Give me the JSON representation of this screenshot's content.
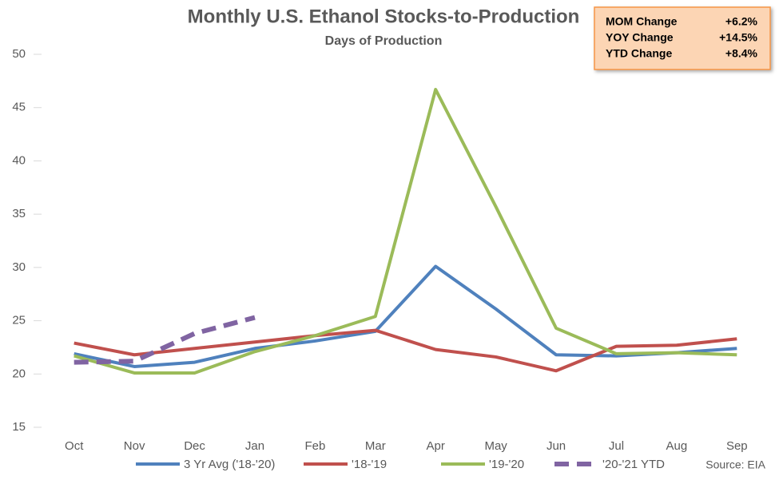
{
  "chart_data": {
    "type": "line",
    "title": "Monthly U.S. Ethanol Stocks-to-Production",
    "subtitle": "Days of Production",
    "categories": [
      "Oct",
      "Nov",
      "Dec",
      "Jan",
      "Feb",
      "Mar",
      "Apr",
      "May",
      "Jun",
      "Jul",
      "Aug",
      "Sep"
    ],
    "series": [
      {
        "name": "3 Yr Avg ('18-'20)",
        "color": "#4f81bd",
        "dash": false,
        "values": [
          21.9,
          20.7,
          21.1,
          22.4,
          23.1,
          24.0,
          30.1,
          26.1,
          21.8,
          21.7,
          22.0,
          22.4
        ]
      },
      {
        "name": "'18-'19",
        "color": "#c0504d",
        "dash": false,
        "values": [
          22.9,
          21.8,
          22.4,
          23.0,
          23.6,
          24.1,
          22.3,
          21.6,
          20.3,
          22.6,
          22.7,
          23.3
        ]
      },
      {
        "name": "'19-'20",
        "color": "#9bbb59",
        "dash": false,
        "values": [
          21.7,
          20.1,
          20.1,
          22.1,
          23.6,
          25.4,
          46.7,
          35.7,
          24.3,
          21.9,
          22.0,
          21.8
        ]
      },
      {
        "name": "'20-'21 YTD",
        "color": "#8064a2",
        "dash": true,
        "values": [
          21.1,
          21.2,
          23.8,
          25.3,
          null,
          null,
          null,
          null,
          null,
          null,
          null,
          null
        ]
      }
    ],
    "ylim": [
      15,
      50
    ],
    "yticks": [
      15,
      20,
      25,
      30,
      35,
      40,
      45,
      50
    ],
    "grid": false,
    "legend": "bottom",
    "annotations": [
      {
        "label": "MOM Change",
        "value": "+6.2%"
      },
      {
        "label": "YOY Change",
        "value": "+14.5%"
      },
      {
        "label": "YTD Change",
        "value": "+8.4%"
      }
    ],
    "source": "Source: EIA"
  }
}
